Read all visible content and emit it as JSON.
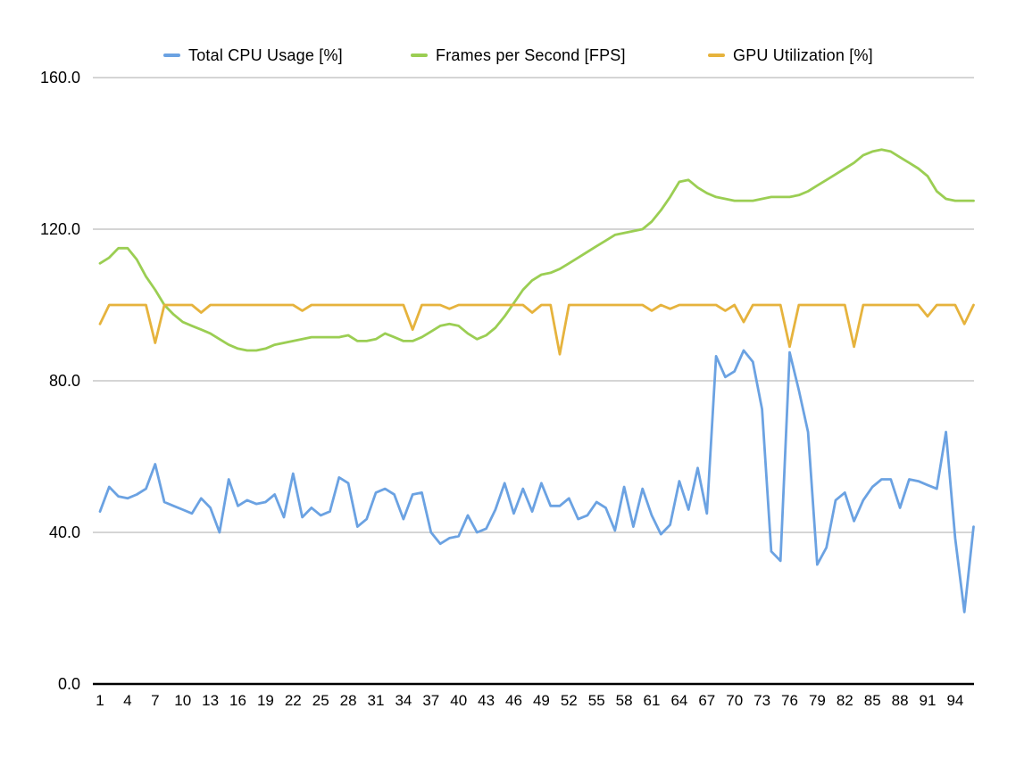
{
  "chart_data": {
    "type": "line",
    "title": "",
    "xlabel": "",
    "ylabel": "",
    "grid": true,
    "legend_position": "top",
    "ylim": [
      0,
      160
    ],
    "yticks": [
      0,
      40,
      80,
      120,
      160
    ],
    "ytick_labels": [
      "0.0",
      "40.0",
      "80.0",
      "120.0",
      "160.0"
    ],
    "x_start": 1,
    "x_count": 96,
    "xtick_labels": [
      1,
      4,
      7,
      10,
      13,
      16,
      19,
      22,
      25,
      28,
      31,
      34,
      37,
      40,
      43,
      46,
      49,
      52,
      55,
      58,
      61,
      64,
      67,
      70,
      73,
      76,
      79,
      82,
      85,
      88,
      91,
      94
    ],
    "colors": {
      "cpu": "#6BA2E2",
      "fps": "#9BCE53",
      "gpu": "#E6B33D",
      "gridline": "#c7c7c7",
      "axis": "#000000"
    },
    "series": [
      {
        "name": "Total CPU Usage [%]",
        "color": "#6BA2E2",
        "values": [
          45.5,
          52,
          49.5,
          49,
          50,
          51.5,
          58,
          48,
          47,
          46,
          45,
          49,
          46.5,
          40,
          54,
          47,
          48.5,
          47.5,
          48,
          50,
          44,
          55.5,
          44,
          46.5,
          44.5,
          45.5,
          54.5,
          53,
          41.5,
          43.5,
          50.5,
          51.5,
          50,
          43.5,
          50,
          50.5,
          40,
          37,
          38.5,
          39,
          44.5,
          40,
          41,
          46,
          53,
          45,
          51.5,
          45.5,
          53,
          47,
          47,
          49,
          43.5,
          44.5,
          48,
          46.5,
          40.5,
          52,
          41.5,
          51.5,
          44.5,
          39.5,
          42,
          53.5,
          46,
          57,
          45,
          86.5,
          81,
          82.5,
          88,
          85,
          72.5,
          35,
          32.5,
          87.5,
          77.5,
          66.5,
          31.5,
          36,
          48.5,
          50.5,
          43,
          48.5,
          52,
          54,
          54,
          46.5,
          54,
          53.5,
          52.5,
          51.5,
          66.5,
          38.5,
          19,
          41.5
        ]
      },
      {
        "name": "Frames per Second [FPS]",
        "color": "#9BCE53",
        "values": [
          111,
          112.5,
          115,
          115,
          112,
          107.5,
          104,
          100,
          97.5,
          95.5,
          94.5,
          93.5,
          92.5,
          91,
          89.5,
          88.5,
          88,
          88,
          88.5,
          89.5,
          90,
          90.5,
          91,
          91.5,
          91.5,
          91.5,
          91.5,
          92,
          90.5,
          90.5,
          91,
          92.5,
          91.5,
          90.5,
          90.5,
          91.5,
          93,
          94.5,
          95,
          94.5,
          92.5,
          91,
          92,
          94,
          97,
          100.5,
          104,
          106.5,
          108,
          108.5,
          109.5,
          111,
          112.5,
          114,
          115.5,
          117,
          118.5,
          119,
          119.5,
          120,
          122,
          125,
          128.5,
          132.5,
          133,
          131,
          129.5,
          128.5,
          128,
          127.5,
          127.5,
          127.5,
          128,
          128.5,
          128.5,
          128.5,
          129,
          130,
          131.5,
          133,
          134.5,
          136,
          137.5,
          139.5,
          140.5,
          141,
          140.5,
          139,
          137.5,
          136,
          134,
          130,
          128,
          127.5,
          127.5,
          127.5
        ]
      },
      {
        "name": "GPU Utilization [%]",
        "color": "#E6B33D",
        "values": [
          95,
          100,
          100,
          100,
          100,
          100,
          90,
          100,
          100,
          100,
          100,
          98,
          100,
          100,
          100,
          100,
          100,
          100,
          100,
          100,
          100,
          100,
          98.5,
          100,
          100,
          100,
          100,
          100,
          100,
          100,
          100,
          100,
          100,
          100,
          93.5,
          100,
          100,
          100,
          99,
          100,
          100,
          100,
          100,
          100,
          100,
          100,
          100,
          98,
          100,
          100,
          87,
          100,
          100,
          100,
          100,
          100,
          100,
          100,
          100,
          100,
          98.5,
          100,
          99,
          100,
          100,
          100,
          100,
          100,
          98.5,
          100,
          95.5,
          100,
          100,
          100,
          100,
          89,
          100,
          100,
          100,
          100,
          100,
          100,
          89,
          100,
          100,
          100,
          100,
          100,
          100,
          100,
          97,
          100,
          100,
          100,
          95,
          100
        ]
      }
    ]
  }
}
